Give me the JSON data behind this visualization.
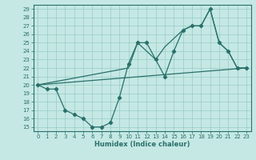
{
  "xlabel": "Humidex (Indice chaleur)",
  "bg_color": "#c5e8e4",
  "line_color": "#2a706a",
  "grid_color": "#96ccc6",
  "xlim": [
    -0.5,
    23.5
  ],
  "ylim": [
    14.5,
    29.5
  ],
  "yticks": [
    15,
    16,
    17,
    18,
    19,
    20,
    21,
    22,
    23,
    24,
    25,
    26,
    27,
    28,
    29
  ],
  "xticks": [
    0,
    1,
    2,
    3,
    4,
    5,
    6,
    7,
    8,
    9,
    10,
    11,
    12,
    13,
    14,
    15,
    16,
    17,
    18,
    19,
    20,
    21,
    22,
    23
  ],
  "line1_x": [
    0,
    1,
    2,
    3,
    4,
    5,
    6,
    7,
    8,
    9,
    10,
    11,
    12,
    13,
    14,
    15,
    16,
    17,
    18,
    19,
    20,
    21,
    22,
    23
  ],
  "line1_y": [
    20,
    19.5,
    19.5,
    17,
    16.5,
    16,
    15,
    15,
    15.5,
    18.5,
    22.5,
    25,
    25,
    23,
    21,
    24,
    26.5,
    27,
    27,
    29,
    25,
    24,
    22,
    22
  ],
  "line2_x": [
    0,
    23
  ],
  "line2_y": [
    20,
    22
  ],
  "line3_x": [
    0,
    10,
    11,
    13,
    14,
    16,
    17,
    18,
    19,
    20,
    21,
    22,
    23
  ],
  "line3_y": [
    20,
    22,
    25,
    23,
    24.5,
    26.5,
    27,
    27,
    29,
    25,
    24,
    22,
    22
  ]
}
